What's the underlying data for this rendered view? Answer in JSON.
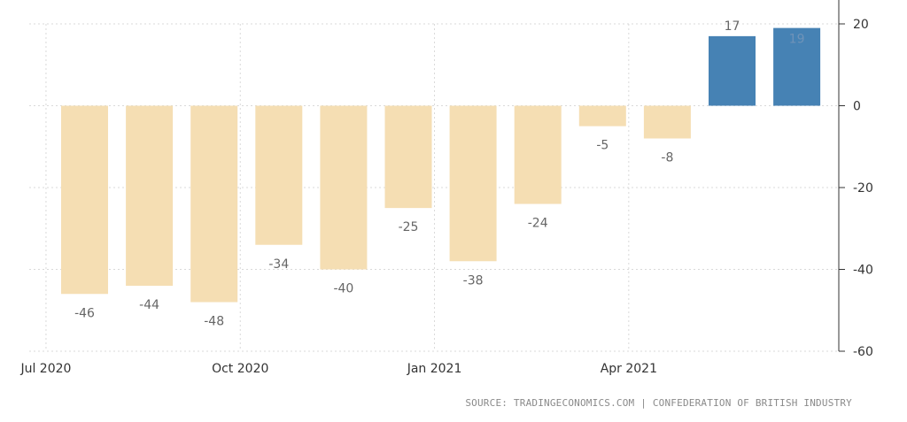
{
  "chart_data": {
    "type": "bar",
    "categories": [
      "Jul 2020",
      "Aug 2020",
      "Sep 2020",
      "Oct 2020",
      "Nov 2020",
      "Dec 2020",
      "Jan 2021",
      "Feb 2021",
      "Mar 2021",
      "Apr 2021",
      "May 2021",
      "Jun 2021"
    ],
    "values": [
      -46,
      -44,
      -48,
      -34,
      -40,
      -25,
      -38,
      -24,
      -5,
      -8,
      17,
      19
    ],
    "x_tick_labels": [
      "Jul 2020",
      "Oct 2020",
      "Jan 2021",
      "Apr 2021"
    ],
    "y_ticks": [
      20,
      0,
      -20,
      -40,
      -60
    ],
    "ylim": [
      -60,
      20
    ],
    "grid": true,
    "colors": {
      "negative": "#f5deb3",
      "positive": "#4682b4",
      "label_negative": "#666666",
      "label_positive_outside": "#666666",
      "label_positive_inside": "#6f93b8",
      "grid": "#d9d9d9",
      "axis": "#333333"
    }
  },
  "source": "SOURCE: TRADINGECONOMICS.COM | CONFEDERATION OF BRITISH INDUSTRY"
}
